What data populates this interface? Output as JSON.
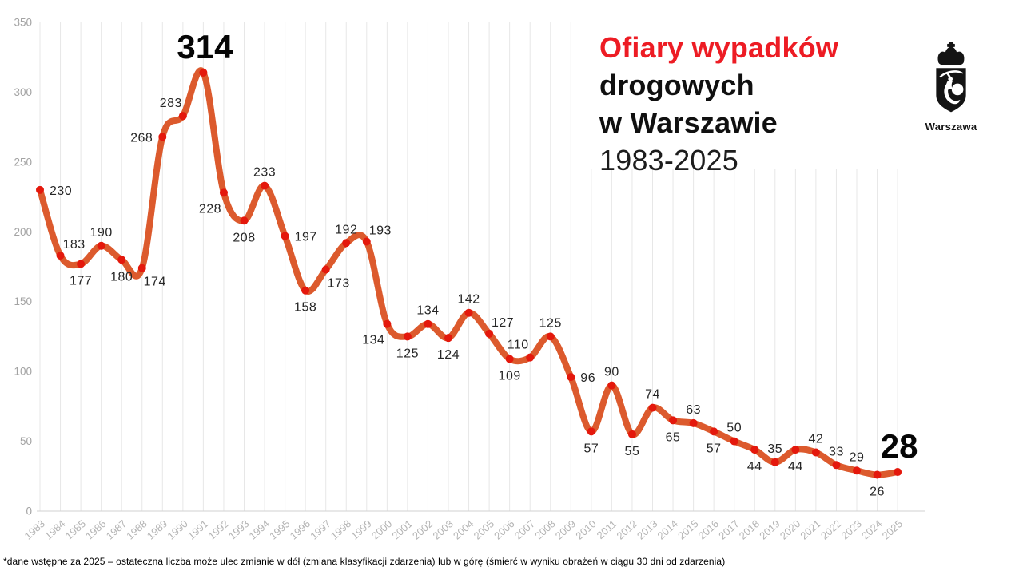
{
  "title": {
    "line1": "Ofiary wypadków",
    "line2": "drogowych",
    "line3": "w Warszawie",
    "line4": "1983-2025"
  },
  "logo": {
    "caption": "Warszawa"
  },
  "footnote": "*dane wstępne za 2025 – ostateczna liczba może ulec zmianie w dół (zmiana klasyfikacji zdarzenia) lub w górę (śmierć w wyniku obrażeń w ciągu 30 dni od zdarzenia)",
  "colors": {
    "title_accent": "#ed1c24",
    "title_dark": "#101010",
    "line": "#dc5a2d",
    "dot": "#e4180c",
    "grid": "#e7e7e7",
    "axis": "#d2d2d2",
    "y_tick_text": "#a3a3a3",
    "x_tick_text": "#b5b5b5",
    "label_text": "#262626",
    "big_label_text": "#050505"
  },
  "chart_data": {
    "type": "line",
    "title": "Ofiary wypadków drogowych w Warszawie 1983-2025",
    "xlabel": "",
    "ylabel": "",
    "ylim": [
      0,
      350
    ],
    "y_ticks": [
      0,
      50,
      100,
      150,
      200,
      250,
      300,
      350
    ],
    "grid": "vertical-only",
    "legend": "none",
    "x": [
      1983,
      1984,
      1985,
      1986,
      1987,
      1988,
      1989,
      1990,
      1991,
      1992,
      1993,
      1994,
      1995,
      1996,
      1997,
      1998,
      1999,
      2000,
      2001,
      2002,
      2003,
      2004,
      2005,
      2006,
      2007,
      2008,
      2009,
      2010,
      2011,
      2012,
      2013,
      2014,
      2015,
      2016,
      2017,
      2018,
      2019,
      2020,
      2021,
      2022,
      2023,
      2024,
      2025
    ],
    "values": [
      230,
      183,
      177,
      190,
      180,
      174,
      268,
      283,
      314,
      228,
      208,
      233,
      197,
      158,
      173,
      192,
      193,
      134,
      125,
      134,
      124,
      142,
      127,
      109,
      110,
      125,
      96,
      57,
      90,
      55,
      74,
      65,
      63,
      57,
      50,
      44,
      35,
      44,
      42,
      33,
      29,
      26,
      28
    ],
    "label_placements": [
      "right",
      "above-right",
      "below",
      "above",
      "below",
      "below-right",
      "left",
      "above-left",
      "big",
      "below-left",
      "below",
      "above",
      "right",
      "below",
      "below-right",
      "above",
      "above-right",
      "below-left",
      "below",
      "above",
      "below",
      "above",
      "above-right",
      "below",
      "above-left",
      "above",
      "right",
      "below",
      "above",
      "below",
      "above",
      "below",
      "above",
      "below",
      "above",
      "below",
      "above",
      "below",
      "above",
      "above",
      "above",
      "below",
      "big"
    ],
    "big_label_years": [
      1991,
      2025
    ]
  }
}
